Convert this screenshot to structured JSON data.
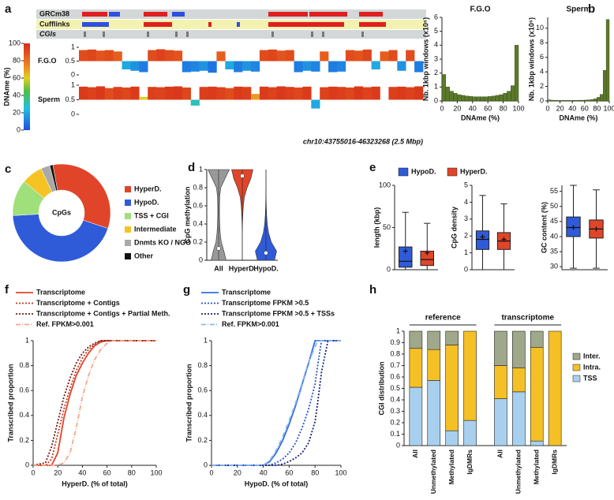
{
  "chart_data": [
    {
      "panel": "a",
      "type": "genome-browser",
      "tracks": [
        "GRCm38",
        "Cufflinks",
        "CGIs"
      ],
      "colorbar": {
        "label": "DNAme (%)",
        "ticks": [
          0,
          20,
          40,
          60,
          80,
          100
        ]
      },
      "ylim": [
        0,
        1
      ],
      "yticks": [
        0,
        0.5,
        1
      ],
      "series": [
        {
          "name": "F.G.O",
          "values": [
            0.9,
            0.92,
            0.88,
            0.9,
            0.85,
            0.2,
            0.15,
            0.1,
            0.9,
            0.93,
            0.9,
            0.88,
            0.1,
            0.12,
            0.15,
            0.08,
            0.85,
            0.2,
            0.1,
            0.15,
            0.12,
            0.9,
            0.92,
            0.88,
            0.9,
            0.1,
            0.15,
            0.12,
            0.85,
            0.1,
            0.12,
            0.9,
            0.88,
            0.92,
            0.2,
            0.85,
            0.9,
            0.15,
            0.9,
            0.1
          ]
        },
        {
          "name": "Sperm",
          "values": [
            0.95,
            0.93,
            0.96,
            0.9,
            0.94,
            0.92,
            0.95,
            0.6,
            0.94,
            0.93,
            0.95,
            0.96,
            0.92,
            0.3,
            0.94,
            0.95,
            0.93,
            0.9,
            0.95,
            0.94,
            0.7,
            0.95,
            0.93,
            0.96,
            0.94,
            0.92,
            0.95,
            0.2,
            0.93,
            0.95,
            0.94,
            0.92,
            0.96,
            0.93,
            0.95,
            0.5,
            0.94,
            0.95,
            0.93,
            0.96
          ]
        }
      ],
      "region": "chr10:43755016-46323268 (2.5 Mbp)"
    },
    {
      "panel": "b",
      "type": "histogram",
      "title": "F.G.O",
      "color": "#5b7a2b",
      "bins": [
        0,
        5,
        10,
        15,
        20,
        25,
        30,
        35,
        40,
        45,
        50,
        55,
        60,
        65,
        70,
        75,
        80,
        85,
        90,
        95,
        100
      ],
      "values": [
        1.9,
        1.0,
        0.7,
        0.55,
        0.45,
        0.4,
        0.35,
        0.33,
        0.3,
        0.3,
        0.3,
        0.3,
        0.32,
        0.35,
        0.4,
        0.45,
        0.55,
        0.7,
        1.1,
        4.0
      ],
      "xlim": [
        0,
        100
      ],
      "xticks": [
        0,
        20,
        40,
        60,
        80,
        100
      ],
      "ylim": [
        0,
        6
      ],
      "yticks": [
        0,
        1,
        2,
        3,
        4,
        5,
        6
      ],
      "xlabel": "DNAme (%)",
      "ylabel": "Nb. 1kbp windows (x10⁶)"
    },
    {
      "type": "histogram",
      "title": "Sperm",
      "color": "#5b7a2b",
      "bins": [
        0,
        5,
        10,
        15,
        20,
        25,
        30,
        35,
        40,
        45,
        50,
        55,
        60,
        65,
        70,
        75,
        80,
        85,
        90,
        95,
        100
      ],
      "values": [
        0.15,
        0.1,
        0.08,
        0.07,
        0.07,
        0.07,
        0.07,
        0.07,
        0.08,
        0.08,
        0.1,
        0.1,
        0.12,
        0.15,
        0.2,
        0.3,
        0.5,
        0.9,
        4.2,
        11.2
      ],
      "xlim": [
        0,
        100
      ],
      "xticks": [
        0,
        20,
        40,
        60,
        80,
        100
      ],
      "ylim": [
        0,
        11.5
      ],
      "yticks": [
        0,
        2,
        4,
        6,
        8,
        10
      ],
      "xlabel": "DNAme (%)",
      "ylabel": "Nb. 1kbp windows (x10⁶)"
    },
    {
      "panel": "c",
      "type": "donut",
      "center_label": "CpGs",
      "categories": [
        "HyperD.",
        "HypoD.",
        "TSS + CGI",
        "Intermediate",
        "Dnmts KO / NGO",
        "Other"
      ],
      "values": [
        33,
        44,
        12,
        7,
        3,
        1
      ],
      "colors": [
        "#e0452a",
        "#2f5bd8",
        "#9fe07a",
        "#f5c424",
        "#a9a9a9",
        "#111111"
      ]
    },
    {
      "panel": "d",
      "type": "violin",
      "ylabel": "CpG methylation",
      "ylim": [
        0,
        1
      ],
      "yticks": [
        0,
        0.2,
        0.4,
        0.6,
        0.8,
        1
      ],
      "levels": [
        0,
        0.1,
        0.2,
        0.3,
        0.4,
        0.5,
        0.6,
        0.7,
        0.8,
        0.9,
        1
      ],
      "series": [
        {
          "name": "All",
          "color": "#999999",
          "density": [
            0.7,
            0.5,
            0.25,
            0.15,
            0.1,
            0.08,
            0.08,
            0.1,
            0.2,
            0.6,
            1.0
          ],
          "median": 0.13
        },
        {
          "name": "HyperD.",
          "color": "#e0452a",
          "density": [
            0,
            0,
            0,
            0,
            0.02,
            0.05,
            0.1,
            0.2,
            0.45,
            0.8,
            1.0
          ],
          "median": 0.93
        },
        {
          "name": "HypoD.",
          "color": "#2f5bd8",
          "density": [
            0.8,
            1.0,
            0.5,
            0.25,
            0.12,
            0.06,
            0.03,
            0.01,
            0,
            0,
            0
          ],
          "median": 0.08
        }
      ]
    },
    {
      "panel": "e",
      "type": "box",
      "ylabel": "length (kbp)",
      "ylim": [
        0,
        100
      ],
      "yticks": [
        0,
        50,
        100
      ],
      "legend": [
        {
          "name": "HypoD.",
          "color": "#2f5bd8"
        },
        {
          "name": "HyperD.",
          "color": "#e0452a"
        }
      ],
      "boxes": [
        {
          "color": "#2f5bd8",
          "min": 0,
          "q1": 3,
          "median": 10,
          "q3": 27,
          "max": 68,
          "mean": 22
        },
        {
          "color": "#e0452a",
          "min": 0,
          "q1": 5,
          "median": 12,
          "q3": 22,
          "max": 55,
          "mean": 20
        }
      ]
    },
    {
      "type": "box",
      "ylabel": "CpG density",
      "ylim": [
        0,
        5
      ],
      "yticks": [
        0,
        1,
        2,
        3,
        4,
        5
      ],
      "boxes": [
        {
          "color": "#2f5bd8",
          "min": 0,
          "q1": 1.2,
          "median": 1.8,
          "q3": 2.3,
          "max": 4.4,
          "mean": 1.95
        },
        {
          "color": "#e0452a",
          "min": 0,
          "q1": 1.2,
          "median": 1.7,
          "q3": 2.2,
          "max": 3.9,
          "mean": 1.8
        }
      ]
    },
    {
      "type": "box",
      "ylabel": "GC content (%)",
      "ylim": [
        29,
        57
      ],
      "yticks": [
        30,
        35,
        40,
        45,
        50,
        55
      ],
      "boxes": [
        {
          "color": "#2f5bd8",
          "min": 29.5,
          "q1": 40,
          "median": 43,
          "q3": 46.5,
          "max": 57,
          "mean": 43
        },
        {
          "color": "#e0452a",
          "min": 29.5,
          "q1": 39.5,
          "median": 42.5,
          "q3": 45.5,
          "max": 55.5,
          "mean": 42.5
        }
      ]
    },
    {
      "panel": "f",
      "type": "line",
      "xlabel": "HyperD. (% of total)",
      "ylabel": "Transcribed proportion",
      "xlim": [
        0,
        100
      ],
      "xticks": [
        0,
        20,
        40,
        60,
        80,
        100
      ],
      "ylim": [
        0,
        1
      ],
      "yticks": [
        0,
        0.2,
        0.4,
        0.6,
        0.8,
        1
      ],
      "x": [
        0,
        10,
        15,
        20,
        25,
        30,
        35,
        40,
        45,
        50,
        55,
        60,
        65,
        70,
        100
      ],
      "series": [
        {
          "name": "Transcriptome",
          "color": "#e0452a",
          "dash": "solid",
          "values": [
            0,
            0,
            0,
            0.1,
            0.38,
            0.57,
            0.72,
            0.82,
            0.9,
            0.96,
            0.99,
            1,
            1,
            1,
            1
          ]
        },
        {
          "name": "Transcriptome + Contigs",
          "color": "#c8361e",
          "dash": "dotted",
          "values": [
            0,
            0,
            0.05,
            0.25,
            0.45,
            0.62,
            0.76,
            0.86,
            0.93,
            0.97,
            1,
            1,
            1,
            1,
            1
          ]
        },
        {
          "name": "Transcriptome + Contigs + Partial Meth.",
          "color": "#6e1a0e",
          "dash": "dotted",
          "values": [
            0,
            0.02,
            0.15,
            0.35,
            0.55,
            0.7,
            0.82,
            0.9,
            0.95,
            0.98,
            1,
            1,
            1,
            1,
            1
          ]
        },
        {
          "name": "Ref. FPKM>0.001",
          "color": "#f2a890",
          "dash": "dashdot",
          "values": [
            0,
            0,
            0,
            0,
            0.02,
            0.1,
            0.3,
            0.55,
            0.72,
            0.85,
            0.93,
            0.98,
            1,
            1,
            1
          ]
        }
      ]
    },
    {
      "panel": "g",
      "type": "line",
      "xlabel": "HypoD. (% of total)",
      "ylabel": "Transcribed proportion",
      "xlim": [
        0,
        100
      ],
      "xticks": [
        0,
        20,
        40,
        60,
        80,
        100
      ],
      "ylim": [
        0,
        1
      ],
      "yticks": [
        0,
        0.2,
        0.4,
        0.6,
        0.8,
        1
      ],
      "x": [
        0,
        40,
        45,
        50,
        55,
        60,
        65,
        70,
        75,
        80,
        82,
        85,
        90,
        95,
        100
      ],
      "series": [
        {
          "name": "Transcriptome",
          "color": "#2f6fe0",
          "dash": "solid",
          "values": [
            0,
            0,
            0.03,
            0.1,
            0.2,
            0.33,
            0.48,
            0.65,
            0.82,
            1,
            1,
            1,
            1,
            1,
            1
          ]
        },
        {
          "name": "Transcriptome FPKM >0.5",
          "color": "#2a4fc8",
          "dash": "dotted",
          "values": [
            0,
            0,
            0,
            0.02,
            0.05,
            0.1,
            0.18,
            0.3,
            0.45,
            0.65,
            0.8,
            1,
            1,
            1,
            1
          ]
        },
        {
          "name": "Transcriptome FPKM >0.5 + TSSs",
          "color": "#15207a",
          "dash": "dotted",
          "values": [
            0,
            0,
            0,
            0,
            0.01,
            0.03,
            0.06,
            0.1,
            0.18,
            0.35,
            0.5,
            0.75,
            1,
            1,
            1
          ]
        },
        {
          "name": "Ref. FPKM>0.001",
          "color": "#8fb8e8",
          "dash": "dashdot",
          "values": [
            0,
            0,
            0.04,
            0.12,
            0.23,
            0.36,
            0.5,
            0.66,
            0.83,
            0.95,
            1,
            1,
            1,
            1,
            1
          ]
        }
      ]
    },
    {
      "panel": "h",
      "type": "stacked-bar",
      "ylabel": "CGI distribution",
      "ylim": [
        0,
        1
      ],
      "yticks": [
        0,
        0.1,
        0.2,
        0.3,
        0.4,
        0.5,
        0.6,
        0.7,
        0.8,
        0.9,
        1
      ],
      "categories": [
        "All",
        "Unmethylated",
        "Methylated",
        "IgDMRs",
        "All",
        "Unmethylated",
        "Methylated",
        "IgDMRs"
      ],
      "groups": [
        {
          "label": "reference",
          "size": 4
        },
        {
          "label": "transcriptome",
          "size": 4
        }
      ],
      "series": [
        {
          "name": "TSS",
          "color": "#a8d0ee",
          "values": [
            0.51,
            0.57,
            0.13,
            0.22,
            0.41,
            0.47,
            0.04,
            0
          ]
        },
        {
          "name": "Intra.",
          "color": "#f5c026",
          "values": [
            0.34,
            0.27,
            0.75,
            0.78,
            0.29,
            0.21,
            0.82,
            1
          ]
        },
        {
          "name": "Inter.",
          "color": "#a0a88c",
          "values": [
            0.15,
            0.16,
            0.12,
            0,
            0.3,
            0.32,
            0.14,
            0
          ]
        }
      ]
    }
  ]
}
